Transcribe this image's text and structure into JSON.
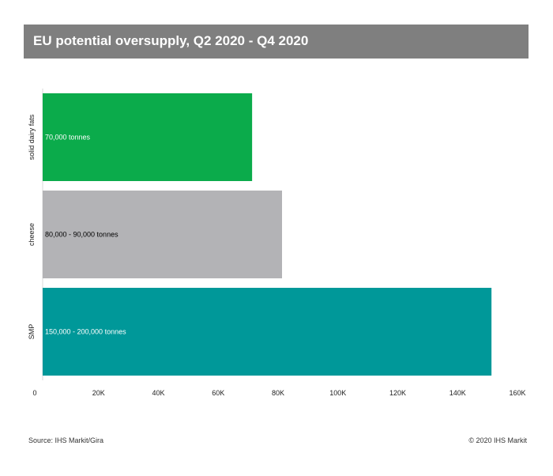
{
  "chart_data": {
    "type": "bar",
    "orientation": "horizontal",
    "title": "EU potential oversupply, Q2 2020 - Q4 2020",
    "categories": [
      "solid dairy fats",
      "cheese",
      "SMP"
    ],
    "values": [
      70000,
      80000,
      150000
    ],
    "value_labels": [
      "70,000 tonnes",
      "80,000 - 90,000 tonnes",
      "150,000 - 200,000 tonnes"
    ],
    "colors": [
      "#0bab4b",
      "#b3b3b6",
      "#009899"
    ],
    "label_colors": [
      "#ffffff",
      "#000000",
      "#ffffff"
    ],
    "xlim": [
      0,
      160000
    ],
    "xticks": [
      {
        "value": 0,
        "label": "0"
      },
      {
        "value": 20000,
        "label": "20K"
      },
      {
        "value": 40000,
        "label": "40K"
      },
      {
        "value": 60000,
        "label": "60K"
      },
      {
        "value": 80000,
        "label": "80K"
      },
      {
        "value": 100000,
        "label": "100K"
      },
      {
        "value": 120000,
        "label": "120K"
      },
      {
        "value": 140000,
        "label": "140K"
      },
      {
        "value": 160000,
        "label": "160K"
      }
    ],
    "grid": false,
    "legend": "none"
  },
  "footer": {
    "source": "Source: IHS Markit/Gira",
    "copyright": "© 2020 IHS Markit"
  }
}
